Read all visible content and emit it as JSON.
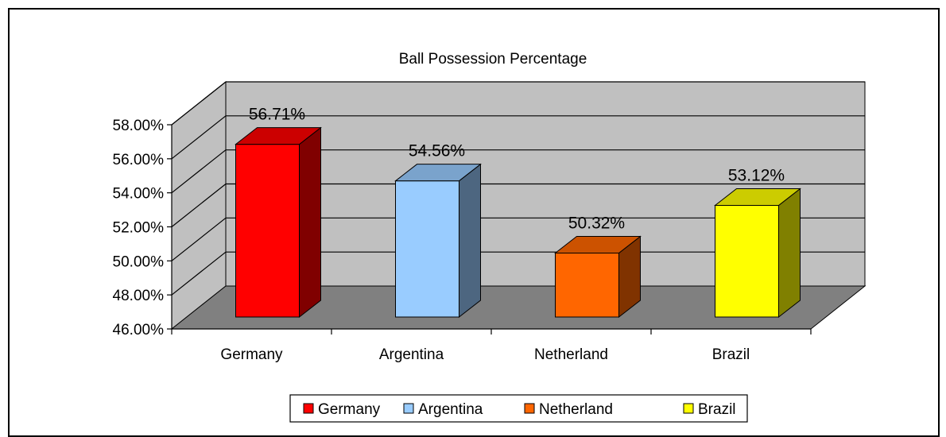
{
  "chart_data": {
    "type": "bar",
    "title": "Ball Possession Percentage",
    "xlabel": "",
    "ylabel": "",
    "categories": [
      "Germany",
      "Argentina",
      "Netherland",
      "Brazil"
    ],
    "values": [
      56.71,
      54.56,
      50.32,
      53.12
    ],
    "value_labels": [
      "56.71%",
      "54.56%",
      "50.32%",
      "53.12%"
    ],
    "ylim": [
      46,
      58
    ],
    "yticks": [
      46,
      48,
      50,
      52,
      54,
      56,
      58
    ],
    "ytick_labels": [
      "46.00%",
      "48.00%",
      "50.00%",
      "52.00%",
      "54.00%",
      "56.00%",
      "58.00%"
    ],
    "grid": true,
    "three_d": true,
    "legend_position": "bottom",
    "colors": [
      "#ff0000",
      "#99ccff",
      "#ff6600",
      "#ffff00"
    ],
    "side_colors": [
      "#800000",
      "#4d6680",
      "#803300",
      "#808000"
    ],
    "top_colors": [
      "#cc0000",
      "#7aa3cc",
      "#cc5200",
      "#cccc00"
    ],
    "wall_color": "#c0c0c0",
    "floor_color": "#808080"
  }
}
